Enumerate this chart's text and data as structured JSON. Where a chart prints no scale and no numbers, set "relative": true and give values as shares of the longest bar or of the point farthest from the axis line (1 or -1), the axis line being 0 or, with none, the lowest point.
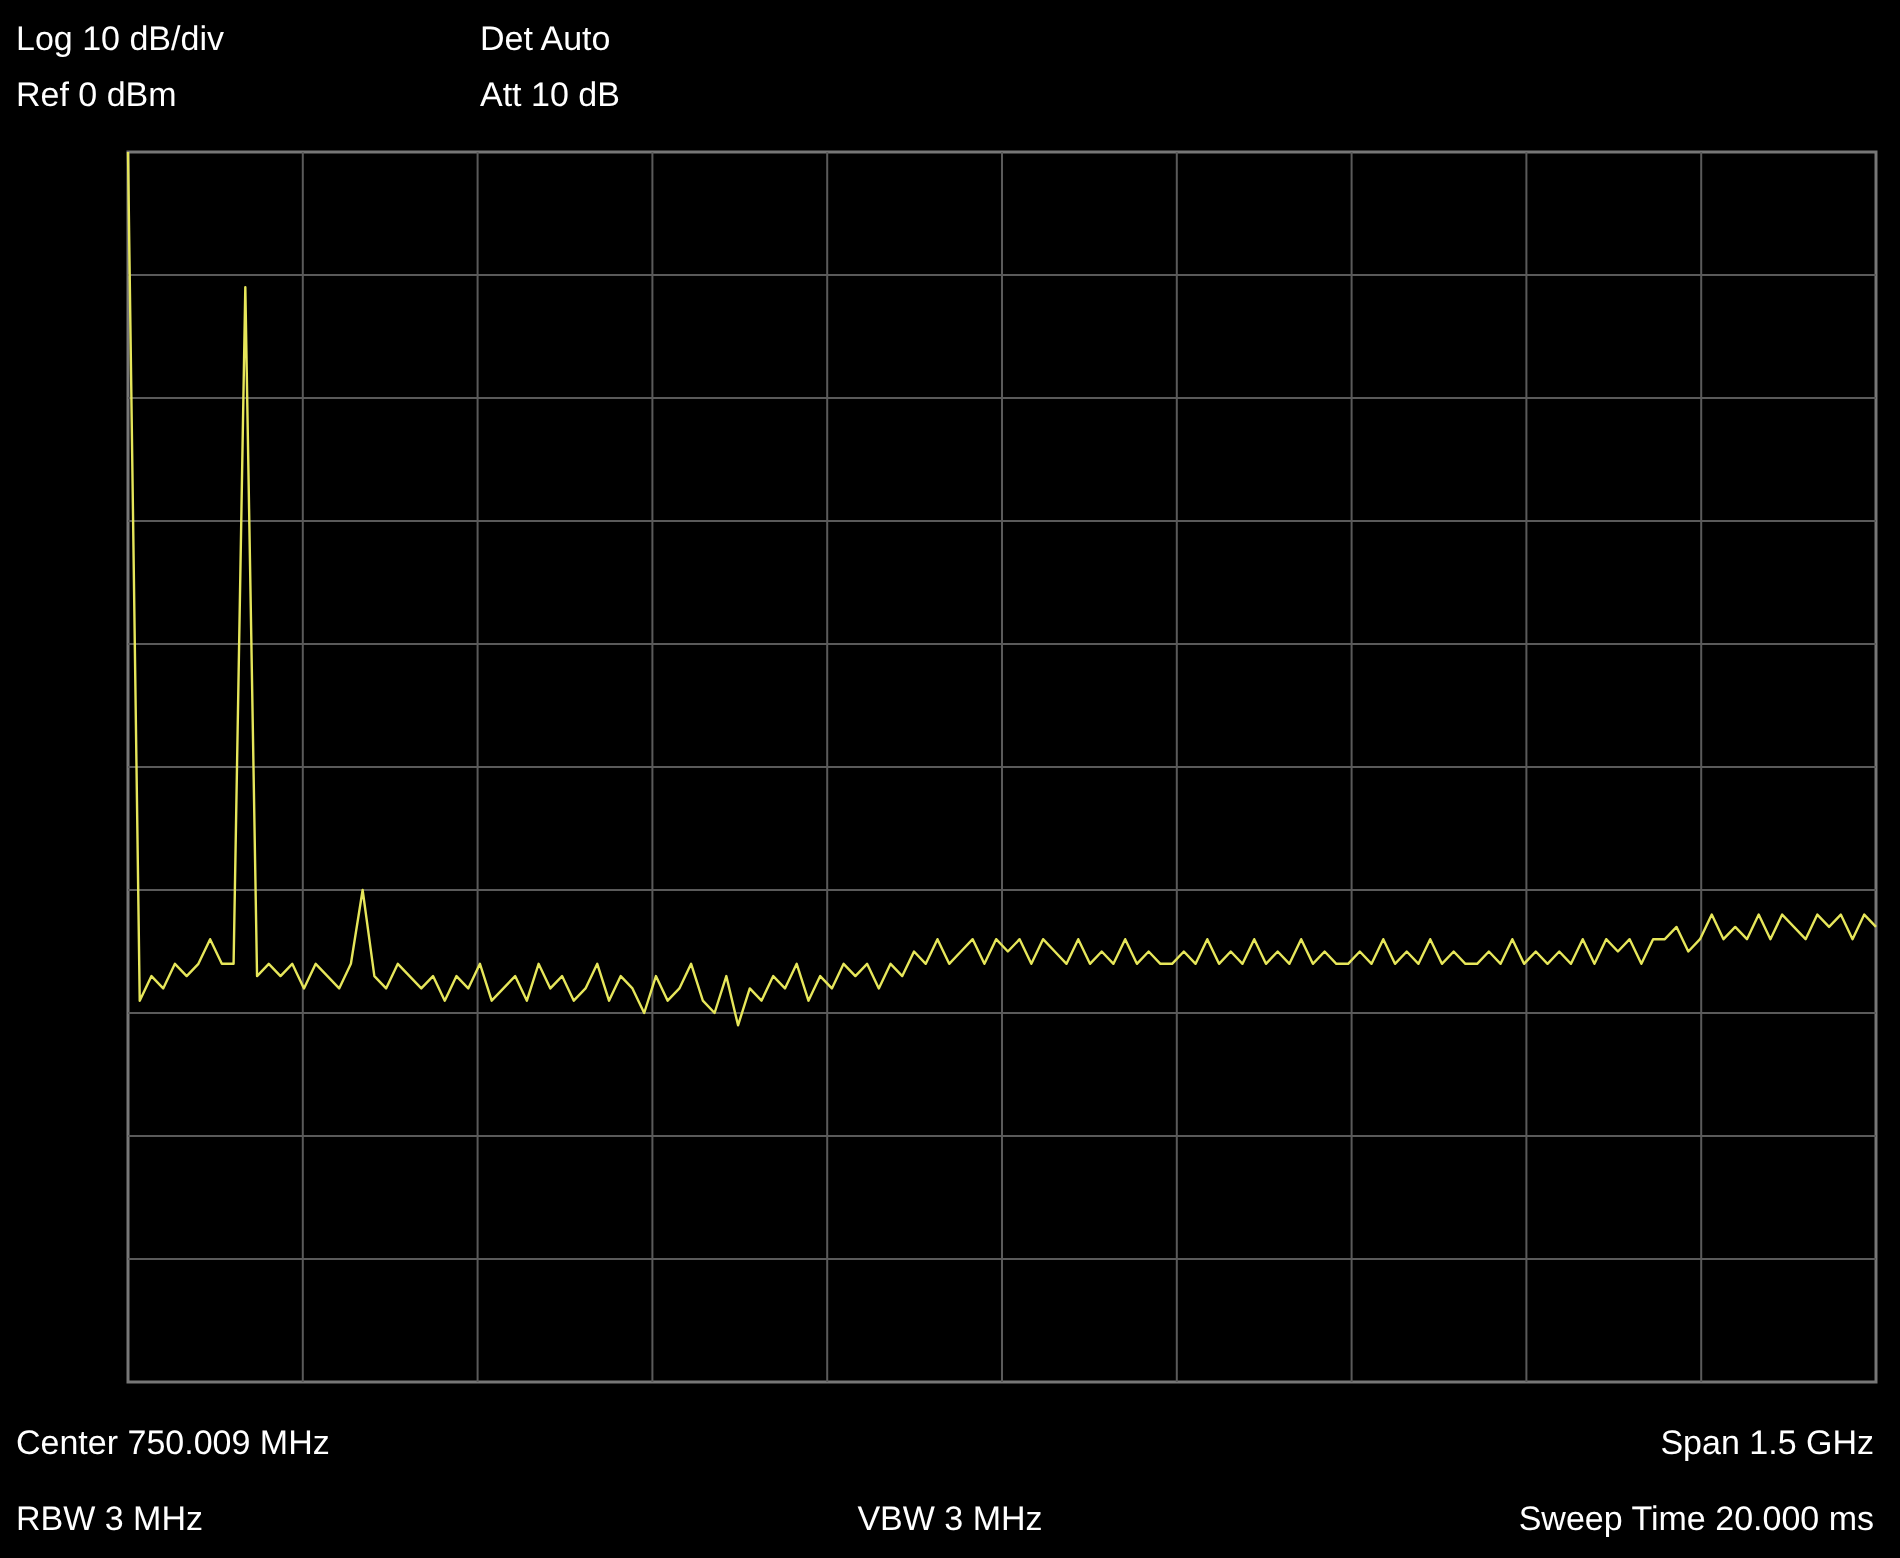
{
  "chart_data": {
    "type": "line",
    "relative": true,
    "grid": true,
    "marker": "none",
    "line_style": "solid",
    "annotations": [
      "Log 10 dB/div",
      "Ref 0 dBm",
      "Det Auto",
      "Att 10 dB",
      "Center 750.009 MHz",
      "Span 1.5 GHz",
      "RBW 3 MHz",
      "VBW 3 MHz",
      "Sweep Time 20.000 ms"
    ],
    "categories": [
      null,
      null,
      null,
      null,
      null,
      null,
      null,
      null,
      null,
      null,
      null,
      null,
      null,
      null,
      null,
      null,
      null,
      null,
      null,
      null,
      null,
      null,
      null,
      null,
      null,
      null,
      null,
      null,
      null,
      null,
      null,
      null,
      null,
      null,
      null,
      null,
      null,
      null,
      null,
      null,
      null,
      null,
      null,
      null,
      null,
      null,
      null,
      null,
      null,
      null,
      null,
      null,
      null,
      null,
      null,
      null,
      null,
      null,
      null,
      null,
      null,
      null,
      null,
      null,
      null,
      null,
      null,
      null,
      null,
      null,
      null,
      null,
      null,
      null,
      null,
      null,
      null,
      null,
      null,
      null,
      null,
      null,
      null,
      null,
      null,
      null,
      null,
      null,
      null,
      null,
      null,
      null,
      null,
      null,
      null,
      null,
      null,
      null,
      null,
      null,
      null,
      null,
      null,
      null,
      null,
      null,
      null,
      null,
      null,
      null,
      null,
      null,
      null,
      null,
      null,
      null,
      null,
      null,
      null,
      null,
      null,
      null,
      null,
      null,
      null,
      null,
      null,
      null,
      null,
      null,
      null,
      null,
      null,
      null,
      null,
      null,
      null,
      null,
      null,
      null,
      null,
      null,
      null,
      null,
      null,
      null,
      null,
      null,
      null,
      null
    ],
    "series": [
      {
        "color": "#e6e65a",
        "values": [
          1,
          0.31,
          0.33,
          0.32,
          0.34,
          0.33,
          0.34,
          0.36,
          0.34,
          0.34,
          0.89,
          0.33,
          0.34,
          0.33,
          0.34,
          0.32,
          0.34,
          0.33,
          0.32,
          0.34,
          0.4,
          0.33,
          0.32,
          0.34,
          0.33,
          0.32,
          0.33,
          0.31,
          0.33,
          0.32,
          0.34,
          0.31,
          0.32,
          0.33,
          0.31,
          0.34,
          0.32,
          0.33,
          0.31,
          0.32,
          0.34,
          0.31,
          0.33,
          0.32,
          0.3,
          0.33,
          0.31,
          0.32,
          0.34,
          0.31,
          0.3,
          0.33,
          0.29,
          0.32,
          0.31,
          0.33,
          0.32,
          0.34,
          0.31,
          0.33,
          0.32,
          0.34,
          0.33,
          0.34,
          0.32,
          0.34,
          0.33,
          0.35,
          0.34,
          0.36,
          0.34,
          0.35,
          0.36,
          0.34,
          0.36,
          0.35,
          0.36,
          0.34,
          0.36,
          0.35,
          0.34,
          0.36,
          0.34,
          0.35,
          0.34,
          0.36,
          0.34,
          0.35,
          0.34,
          0.34,
          0.35,
          0.34,
          0.36,
          0.34,
          0.35,
          0.34,
          0.36,
          0.34,
          0.35,
          0.34,
          0.36,
          0.34,
          0.35,
          0.34,
          0.34,
          0.35,
          0.34,
          0.36,
          0.34,
          0.35,
          0.34,
          0.36,
          0.34,
          0.35,
          0.34,
          0.34,
          0.35,
          0.34,
          0.36,
          0.34,
          0.35,
          0.34,
          0.35,
          0.34,
          0.36,
          0.34,
          0.36,
          0.35,
          0.36,
          0.34,
          0.36,
          0.36,
          0.37,
          0.35,
          0.36,
          0.38,
          0.36,
          0.37,
          0.36,
          0.38,
          0.36,
          0.38,
          0.37,
          0.36,
          0.38,
          0.37,
          0.38,
          0.36,
          0.38,
          0.37
        ]
      }
    ]
  }
}
